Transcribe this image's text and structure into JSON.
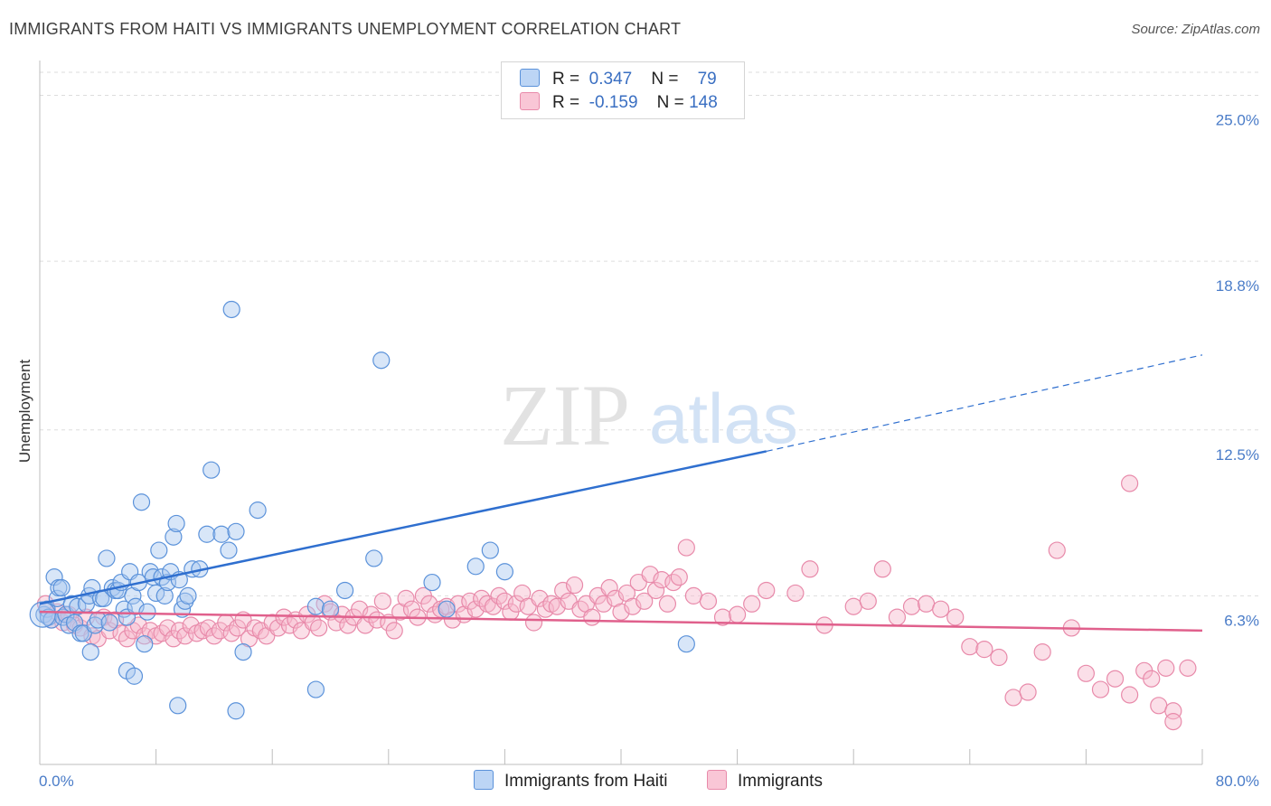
{
  "title": "IMMIGRANTS FROM HAITI VS IMMIGRANTS UNEMPLOYMENT CORRELATION CHART",
  "source": "Source: ZipAtlas.com",
  "watermark": {
    "zip": "ZIP",
    "atlas": "atlas"
  },
  "legend": {
    "rows": [
      {
        "r_label": "R =",
        "r_value": "0.347",
        "n_label": "N =",
        "n_value": "79"
      },
      {
        "r_label": "R =",
        "r_value": "-0.159",
        "n_label": "N =",
        "n_value": "148"
      }
    ]
  },
  "colors": {
    "series1_fill": "#a9c8f0",
    "series1_stroke": "#5b92da",
    "series1_line": "#2f6fcf",
    "series2_fill": "#f7b8cc",
    "series2_stroke": "#e88aaa",
    "series2_line": "#e0608c",
    "grid": "#dddddd",
    "tick_text": "#4a7cc8"
  },
  "chart_data": {
    "type": "scatter",
    "title": "IMMIGRANTS FROM HAITI VS IMMIGRANTS UNEMPLOYMENT CORRELATION CHART",
    "xlabel": "",
    "ylabel": "Unemployment",
    "xlim": [
      0,
      80
    ],
    "ylim": [
      0,
      26.3
    ],
    "x_tick_labels": [
      "0.0%",
      "80.0%"
    ],
    "y_ticks": [
      6.3,
      12.5,
      18.8,
      25.0
    ],
    "y_tick_labels": [
      "6.3%",
      "12.5%",
      "18.8%",
      "25.0%"
    ],
    "grid": "horizontal-dashed",
    "legend_position": "bottom",
    "series": [
      {
        "name": "Immigrants from Haiti",
        "R": 0.347,
        "N": 79,
        "trend": {
          "x": [
            0,
            50
          ],
          "y": [
            6.0,
            11.7
          ],
          "dashed_x": [
            50,
            80
          ],
          "dashed_y": [
            11.7,
            15.3
          ]
        },
        "points": [
          [
            0.3,
            5.6
          ],
          [
            0.5,
            5.8
          ],
          [
            0.6,
            5.5
          ],
          [
            0.8,
            5.4
          ],
          [
            1.0,
            7.0
          ],
          [
            1.2,
            6.2
          ],
          [
            1.3,
            6.6
          ],
          [
            1.5,
            6.6
          ],
          [
            1.6,
            5.5
          ],
          [
            1.8,
            5.6
          ],
          [
            2.0,
            5.2
          ],
          [
            2.2,
            6.0
          ],
          [
            2.4,
            5.3
          ],
          [
            2.6,
            5.9
          ],
          [
            2.8,
            4.9
          ],
          [
            3.0,
            4.9
          ],
          [
            3.2,
            6.0
          ],
          [
            3.4,
            6.3
          ],
          [
            3.6,
            6.6
          ],
          [
            3.8,
            5.2
          ],
          [
            4.0,
            5.4
          ],
          [
            4.2,
            6.2
          ],
          [
            4.4,
            6.2
          ],
          [
            4.6,
            7.7
          ],
          [
            4.8,
            5.3
          ],
          [
            5.0,
            6.6
          ],
          [
            5.2,
            6.5
          ],
          [
            5.4,
            6.5
          ],
          [
            5.6,
            6.8
          ],
          [
            5.8,
            5.8
          ],
          [
            6.0,
            5.5
          ],
          [
            6.2,
            7.2
          ],
          [
            6.4,
            6.3
          ],
          [
            6.6,
            5.9
          ],
          [
            6.8,
            6.8
          ],
          [
            7.0,
            9.8
          ],
          [
            7.2,
            4.5
          ],
          [
            7.4,
            5.7
          ],
          [
            7.6,
            7.2
          ],
          [
            7.8,
            7.0
          ],
          [
            8.0,
            6.4
          ],
          [
            8.2,
            8.0
          ],
          [
            8.4,
            7.0
          ],
          [
            8.6,
            6.3
          ],
          [
            8.8,
            6.8
          ],
          [
            9.0,
            7.2
          ],
          [
            9.2,
            8.5
          ],
          [
            9.4,
            9.0
          ],
          [
            9.6,
            6.9
          ],
          [
            9.8,
            5.8
          ],
          [
            10.0,
            6.1
          ],
          [
            10.2,
            6.3
          ],
          [
            10.5,
            7.3
          ],
          [
            11.0,
            7.3
          ],
          [
            11.5,
            8.6
          ],
          [
            11.8,
            11.0
          ],
          [
            12.5,
            8.6
          ],
          [
            13.5,
            8.7
          ],
          [
            13.0,
            8.0
          ],
          [
            14.0,
            4.2
          ],
          [
            15.0,
            9.5
          ],
          [
            19.0,
            5.9
          ],
          [
            20.0,
            5.8
          ],
          [
            21.0,
            6.5
          ],
          [
            23.0,
            7.7
          ],
          [
            23.5,
            15.1
          ],
          [
            27.0,
            6.8
          ],
          [
            28.0,
            5.8
          ],
          [
            30.0,
            7.4
          ],
          [
            31.0,
            8.0
          ],
          [
            32.0,
            7.2
          ],
          [
            13.2,
            17.0
          ],
          [
            3.5,
            4.2
          ],
          [
            6.0,
            3.5
          ],
          [
            9.5,
            2.2
          ],
          [
            13.5,
            2.0
          ],
          [
            19.0,
            2.8
          ],
          [
            6.5,
            3.3
          ],
          [
            44.5,
            4.5
          ]
        ]
      },
      {
        "name": "Immigrants",
        "R": -0.159,
        "N": 148,
        "trend": {
          "x": [
            0,
            80
          ],
          "y": [
            5.7,
            5.0
          ]
        },
        "points": [
          [
            0.4,
            6.0
          ],
          [
            0.8,
            5.4
          ],
          [
            1.2,
            5.7
          ],
          [
            1.6,
            5.3
          ],
          [
            2.0,
            5.6
          ],
          [
            2.4,
            5.2
          ],
          [
            2.8,
            5.1
          ],
          [
            3.2,
            5.5
          ],
          [
            3.6,
            4.8
          ],
          [
            4.0,
            4.7
          ],
          [
            4.4,
            5.5
          ],
          [
            4.8,
            5.0
          ],
          [
            5.2,
            5.4
          ],
          [
            5.6,
            4.9
          ],
          [
            6.0,
            4.7
          ],
          [
            6.4,
            5.0
          ],
          [
            6.8,
            5.2
          ],
          [
            7.2,
            4.8
          ],
          [
            7.6,
            5.0
          ],
          [
            8.0,
            4.8
          ],
          [
            8.4,
            4.9
          ],
          [
            8.8,
            5.1
          ],
          [
            9.2,
            4.7
          ],
          [
            9.6,
            5.0
          ],
          [
            10.0,
            4.8
          ],
          [
            10.4,
            5.2
          ],
          [
            10.8,
            4.9
          ],
          [
            11.2,
            5.0
          ],
          [
            11.6,
            5.1
          ],
          [
            12.0,
            4.8
          ],
          [
            12.4,
            5.0
          ],
          [
            12.8,
            5.3
          ],
          [
            13.2,
            4.9
          ],
          [
            13.6,
            5.1
          ],
          [
            14.0,
            5.4
          ],
          [
            14.4,
            4.7
          ],
          [
            14.8,
            5.1
          ],
          [
            15.2,
            5.0
          ],
          [
            15.6,
            4.8
          ],
          [
            16.0,
            5.3
          ],
          [
            16.4,
            5.1
          ],
          [
            16.8,
            5.5
          ],
          [
            17.2,
            5.2
          ],
          [
            17.6,
            5.4
          ],
          [
            18.0,
            5.0
          ],
          [
            18.4,
            5.6
          ],
          [
            18.8,
            5.3
          ],
          [
            19.2,
            5.1
          ],
          [
            19.6,
            6.0
          ],
          [
            20.0,
            5.7
          ],
          [
            20.4,
            5.3
          ],
          [
            20.8,
            5.6
          ],
          [
            21.2,
            5.2
          ],
          [
            21.6,
            5.5
          ],
          [
            22.0,
            5.8
          ],
          [
            22.4,
            5.2
          ],
          [
            22.8,
            5.6
          ],
          [
            23.2,
            5.4
          ],
          [
            23.6,
            6.1
          ],
          [
            24.0,
            5.3
          ],
          [
            24.4,
            5.0
          ],
          [
            24.8,
            5.7
          ],
          [
            25.2,
            6.2
          ],
          [
            25.6,
            5.8
          ],
          [
            26.0,
            5.5
          ],
          [
            26.4,
            6.3
          ],
          [
            26.8,
            6.0
          ],
          [
            27.2,
            5.6
          ],
          [
            27.6,
            5.8
          ],
          [
            28.0,
            5.9
          ],
          [
            28.4,
            5.4
          ],
          [
            28.8,
            6.0
          ],
          [
            29.2,
            5.6
          ],
          [
            29.6,
            6.1
          ],
          [
            30.0,
            5.8
          ],
          [
            30.4,
            6.2
          ],
          [
            30.8,
            6.0
          ],
          [
            31.2,
            5.9
          ],
          [
            31.6,
            6.3
          ],
          [
            32.0,
            6.1
          ],
          [
            32.4,
            5.7
          ],
          [
            32.8,
            6.0
          ],
          [
            33.2,
            6.4
          ],
          [
            33.6,
            5.9
          ],
          [
            34.0,
            5.3
          ],
          [
            34.4,
            6.2
          ],
          [
            34.8,
            5.8
          ],
          [
            35.2,
            6.0
          ],
          [
            35.6,
            5.9
          ],
          [
            36.0,
            6.5
          ],
          [
            36.4,
            6.1
          ],
          [
            36.8,
            6.7
          ],
          [
            37.2,
            5.8
          ],
          [
            37.6,
            6.0
          ],
          [
            38.0,
            5.5
          ],
          [
            38.4,
            6.3
          ],
          [
            38.8,
            6.0
          ],
          [
            39.2,
            6.6
          ],
          [
            39.6,
            6.2
          ],
          [
            40.0,
            5.7
          ],
          [
            40.4,
            6.4
          ],
          [
            40.8,
            5.9
          ],
          [
            41.2,
            6.8
          ],
          [
            41.6,
            6.1
          ],
          [
            42.0,
            7.1
          ],
          [
            42.4,
            6.5
          ],
          [
            42.8,
            6.9
          ],
          [
            43.2,
            6.0
          ],
          [
            43.6,
            6.8
          ],
          [
            44.0,
            7.0
          ],
          [
            44.5,
            8.1
          ],
          [
            45.0,
            6.3
          ],
          [
            46.0,
            6.1
          ],
          [
            47.0,
            5.5
          ],
          [
            48.0,
            5.6
          ],
          [
            49.0,
            6.0
          ],
          [
            50.0,
            6.5
          ],
          [
            52.0,
            6.4
          ],
          [
            53.0,
            7.3
          ],
          [
            54.0,
            5.2
          ],
          [
            56.0,
            5.9
          ],
          [
            57.0,
            6.1
          ],
          [
            58.0,
            7.3
          ],
          [
            59.0,
            5.5
          ],
          [
            60.0,
            5.9
          ],
          [
            61.0,
            6.0
          ],
          [
            62.0,
            5.8
          ],
          [
            63.0,
            5.5
          ],
          [
            64.0,
            4.4
          ],
          [
            65.0,
            4.3
          ],
          [
            66.0,
            4.0
          ],
          [
            67.0,
            2.5
          ],
          [
            68.0,
            2.7
          ],
          [
            69.0,
            4.2
          ],
          [
            70.0,
            8.0
          ],
          [
            71.0,
            5.1
          ],
          [
            72.0,
            3.4
          ],
          [
            73.0,
            2.8
          ],
          [
            74.0,
            3.2
          ],
          [
            75.0,
            2.6
          ],
          [
            76.0,
            3.5
          ],
          [
            77.0,
            2.2
          ],
          [
            78.0,
            2.0
          ],
          [
            79.0,
            3.6
          ],
          [
            75.0,
            10.5
          ],
          [
            78.0,
            1.6
          ],
          [
            76.5,
            3.2
          ],
          [
            77.5,
            3.6
          ]
        ]
      }
    ]
  },
  "bottom_legend": [
    {
      "label": "Immigrants from Haiti"
    },
    {
      "label": "Immigrants"
    }
  ]
}
